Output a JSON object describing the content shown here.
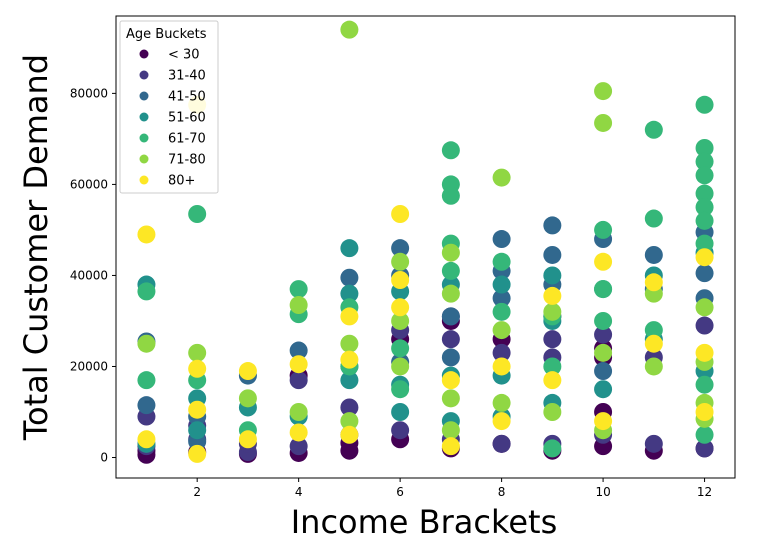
{
  "chart_data": {
    "type": "scatter",
    "title": "",
    "xlabel": "Income Brackets",
    "ylabel": "Total Customer Demand",
    "xlim": [
      0.4,
      12.6
    ],
    "ylim": [
      -4500,
      97000
    ],
    "xticks": [
      2,
      4,
      6,
      8,
      10,
      12
    ],
    "xtick_labels": [
      "2",
      "4",
      "6",
      "8",
      "10",
      "12"
    ],
    "yticks": [
      0,
      20000,
      40000,
      60000,
      80000
    ],
    "ytick_labels": [
      "0",
      "20000",
      "40000",
      "60000",
      "80000"
    ],
    "grid": false,
    "legend": {
      "title": "Age Buckets",
      "placement": "top-left"
    },
    "series": [
      {
        "name": "< 30",
        "color": "#440154",
        "points": [
          [
            1,
            600
          ],
          [
            1,
            1500
          ],
          [
            2,
            1200
          ],
          [
            3,
            800
          ],
          [
            4,
            1000
          ],
          [
            4,
            18000
          ],
          [
            5,
            1500
          ],
          [
            5,
            3200
          ],
          [
            6,
            4000
          ],
          [
            6,
            26000
          ],
          [
            7,
            2000
          ],
          [
            7,
            30000
          ],
          [
            8,
            3000
          ],
          [
            8,
            26000
          ],
          [
            9,
            1500
          ],
          [
            9,
            31000
          ],
          [
            10,
            2500
          ],
          [
            10,
            10000
          ],
          [
            10,
            22000
          ],
          [
            10,
            24000
          ],
          [
            11,
            1500
          ],
          [
            12,
            2000
          ]
        ]
      },
      {
        "name": "31-40",
        "color": "#443983",
        "points": [
          [
            1,
            2500
          ],
          [
            1,
            9000
          ],
          [
            2,
            4000
          ],
          [
            2,
            7000
          ],
          [
            3,
            1200
          ],
          [
            3,
            3000
          ],
          [
            4,
            2500
          ],
          [
            4,
            17000
          ],
          [
            5,
            5000
          ],
          [
            5,
            11000
          ],
          [
            6,
            6000
          ],
          [
            6,
            28000
          ],
          [
            7,
            4000
          ],
          [
            7,
            26000
          ],
          [
            7,
            31000
          ],
          [
            8,
            3000
          ],
          [
            8,
            23000
          ],
          [
            9,
            3000
          ],
          [
            9,
            22000
          ],
          [
            9,
            26000
          ],
          [
            10,
            5000
          ],
          [
            10,
            27000
          ],
          [
            11,
            3000
          ],
          [
            11,
            22000
          ],
          [
            12,
            2000
          ],
          [
            12,
            29000
          ]
        ]
      },
      {
        "name": "41-50",
        "color": "#31688e",
        "points": [
          [
            1,
            11500
          ],
          [
            1,
            25500
          ],
          [
            2,
            9000
          ],
          [
            2,
            3500
          ],
          [
            3,
            18000
          ],
          [
            4,
            23500
          ],
          [
            5,
            39500
          ],
          [
            5,
            20000
          ],
          [
            6,
            46000
          ],
          [
            6,
            40000
          ],
          [
            6,
            21000
          ],
          [
            7,
            31000
          ],
          [
            7,
            22000
          ],
          [
            8,
            48000
          ],
          [
            8,
            41000
          ],
          [
            8,
            35000
          ],
          [
            9,
            51000
          ],
          [
            9,
            44500
          ],
          [
            9,
            38000
          ],
          [
            10,
            48000
          ],
          [
            10,
            19000
          ],
          [
            11,
            44500
          ],
          [
            11,
            37000
          ],
          [
            12,
            35000
          ],
          [
            12,
            49500
          ],
          [
            12,
            40500
          ]
        ]
      },
      {
        "name": "51-60",
        "color": "#21918c",
        "points": [
          [
            1,
            38000
          ],
          [
            1,
            3000
          ],
          [
            2,
            13000
          ],
          [
            2,
            6000
          ],
          [
            3,
            11000
          ],
          [
            4,
            9000
          ],
          [
            5,
            46000
          ],
          [
            5,
            36000
          ],
          [
            5,
            17000
          ],
          [
            6,
            36500
          ],
          [
            6,
            16000
          ],
          [
            6,
            10000
          ],
          [
            7,
            38000
          ],
          [
            7,
            18000
          ],
          [
            7,
            8000
          ],
          [
            8,
            38000
          ],
          [
            8,
            18000
          ],
          [
            8,
            9000
          ],
          [
            9,
            40000
          ],
          [
            9,
            30000
          ],
          [
            9,
            12000
          ],
          [
            10,
            37000
          ],
          [
            10,
            15000
          ],
          [
            11,
            40000
          ],
          [
            11,
            26000
          ],
          [
            12,
            45000
          ],
          [
            12,
            19000
          ]
        ]
      },
      {
        "name": "61-70",
        "color": "#35b779",
        "points": [
          [
            1,
            36500
          ],
          [
            1,
            17000
          ],
          [
            2,
            53500
          ],
          [
            2,
            17000
          ],
          [
            3,
            6000
          ],
          [
            4,
            31500
          ],
          [
            4,
            37000
          ],
          [
            5,
            33000
          ],
          [
            5,
            20000
          ],
          [
            6,
            24000
          ],
          [
            6,
            15000
          ],
          [
            7,
            67500
          ],
          [
            7,
            60000
          ],
          [
            7,
            57500
          ],
          [
            7,
            47000
          ],
          [
            7,
            41000
          ],
          [
            8,
            43000
          ],
          [
            8,
            32000
          ],
          [
            9,
            31000
          ],
          [
            9,
            20000
          ],
          [
            9,
            2000
          ],
          [
            10,
            50000
          ],
          [
            10,
            37000
          ],
          [
            10,
            30000
          ],
          [
            11,
            72000
          ],
          [
            11,
            52500
          ],
          [
            11,
            28000
          ],
          [
            12,
            77500
          ],
          [
            12,
            68000
          ],
          [
            12,
            65000
          ],
          [
            12,
            62000
          ],
          [
            12,
            58000
          ],
          [
            12,
            55000
          ],
          [
            12,
            52000
          ],
          [
            12,
            47000
          ],
          [
            12,
            16000
          ],
          [
            12,
            5000
          ]
        ]
      },
      {
        "name": "71-80",
        "color": "#90d743",
        "points": [
          [
            1,
            25000
          ],
          [
            2,
            23000
          ],
          [
            3,
            13000
          ],
          [
            4,
            33500
          ],
          [
            4,
            10000
          ],
          [
            5,
            94000
          ],
          [
            5,
            25000
          ],
          [
            5,
            8000
          ],
          [
            6,
            43000
          ],
          [
            6,
            30000
          ],
          [
            6,
            20000
          ],
          [
            7,
            45000
          ],
          [
            7,
            36000
          ],
          [
            7,
            13000
          ],
          [
            7,
            6000
          ],
          [
            8,
            61500
          ],
          [
            8,
            28000
          ],
          [
            8,
            12000
          ],
          [
            9,
            32000
          ],
          [
            9,
            10000
          ],
          [
            10,
            80500
          ],
          [
            10,
            73500
          ],
          [
            10,
            23000
          ],
          [
            10,
            6000
          ],
          [
            11,
            36000
          ],
          [
            11,
            20000
          ],
          [
            12,
            33000
          ],
          [
            12,
            21000
          ],
          [
            12,
            12000
          ],
          [
            12,
            8500
          ]
        ]
      },
      {
        "name": "80+",
        "color": "#fde725",
        "points": [
          [
            1,
            49000
          ],
          [
            1,
            4000
          ],
          [
            2,
            77500
          ],
          [
            2,
            19500
          ],
          [
            2,
            10500
          ],
          [
            2,
            800
          ],
          [
            3,
            19000
          ],
          [
            3,
            4000
          ],
          [
            4,
            20500
          ],
          [
            4,
            5500
          ],
          [
            5,
            31000
          ],
          [
            5,
            21500
          ],
          [
            5,
            5000
          ],
          [
            6,
            53500
          ],
          [
            6,
            39000
          ],
          [
            6,
            33000
          ],
          [
            7,
            17000
          ],
          [
            7,
            2500
          ],
          [
            8,
            20000
          ],
          [
            8,
            8000
          ],
          [
            9,
            35500
          ],
          [
            9,
            17000
          ],
          [
            10,
            43000
          ],
          [
            10,
            8000
          ],
          [
            11,
            38500
          ],
          [
            11,
            25000
          ],
          [
            12,
            44000
          ],
          [
            12,
            23000
          ],
          [
            12,
            10000
          ]
        ]
      }
    ]
  }
}
